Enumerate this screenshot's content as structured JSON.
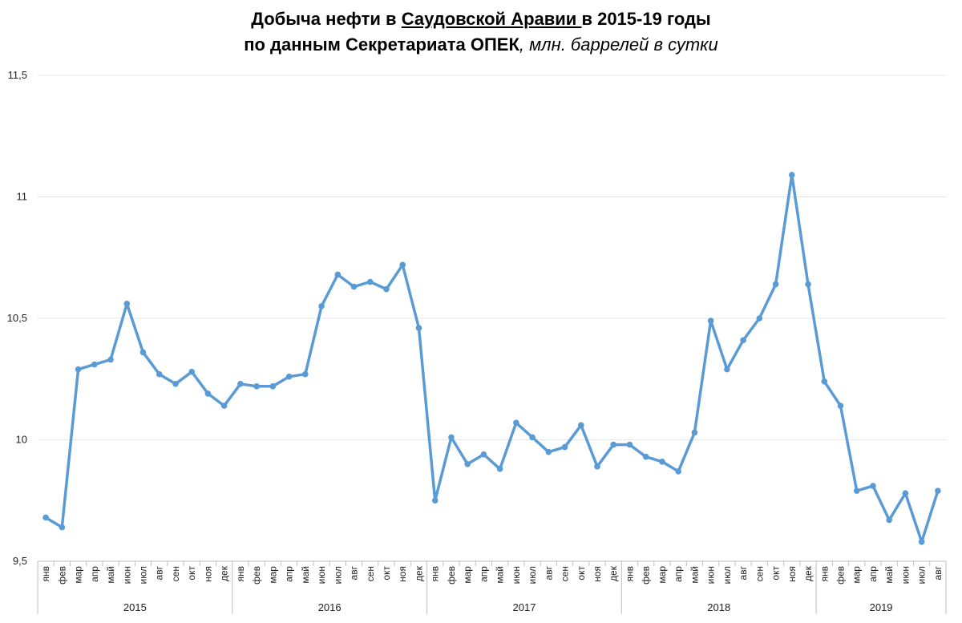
{
  "title": {
    "part1": "Добыча нефти в ",
    "country": "Саудовской Аравии ",
    "part2": "в 2015-19 годы",
    "line2_bold": "по данным Секретариата ОПЕК",
    "line2_italic": ", млн. баррелей в сутки"
  },
  "colors": {
    "line": "#5b9bd5",
    "grid": "#e6e6e6",
    "axis": "#bfbfbf"
  },
  "chart_data": {
    "type": "line",
    "ylim": [
      9.5,
      11.5
    ],
    "yticks": [
      "9,5",
      "10",
      "10,5",
      "11",
      "11,5"
    ],
    "ytick_values": [
      9.5,
      10,
      10.5,
      11,
      11.5
    ],
    "grid": true,
    "months": [
      "янв",
      "фев",
      "мар",
      "апр",
      "май",
      "июн",
      "июл",
      "авг",
      "сен",
      "окт",
      "ноя",
      "дек"
    ],
    "years": [
      "2015",
      "2016",
      "2017",
      "2018",
      "2019"
    ],
    "months_per_year": [
      12,
      12,
      12,
      12,
      8
    ],
    "values": [
      9.68,
      9.64,
      10.29,
      10.31,
      10.33,
      10.56,
      10.36,
      10.27,
      10.23,
      10.28,
      10.19,
      10.14,
      10.23,
      10.22,
      10.22,
      10.26,
      10.27,
      10.55,
      10.68,
      10.63,
      10.65,
      10.62,
      10.72,
      10.46,
      9.75,
      10.01,
      9.9,
      9.94,
      9.88,
      10.07,
      10.01,
      9.95,
      9.97,
      10.06,
      9.89,
      9.98,
      9.98,
      9.93,
      9.91,
      9.87,
      10.03,
      10.49,
      10.29,
      10.41,
      10.5,
      10.64,
      11.09,
      10.64,
      10.24,
      10.14,
      9.79,
      9.81,
      9.67,
      9.78,
      9.58,
      9.79
    ]
  }
}
